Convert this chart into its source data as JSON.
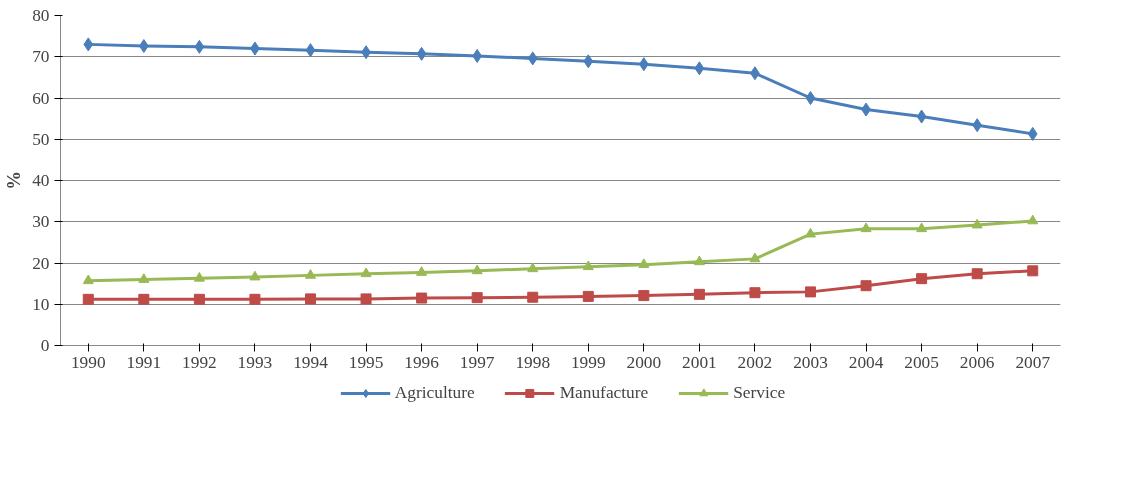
{
  "chart_data": {
    "type": "line",
    "ylabel": "%",
    "categories": [
      "1990",
      "1991",
      "1992",
      "1993",
      "1994",
      "1995",
      "1996",
      "1997",
      "1998",
      "1999",
      "2000",
      "2001",
      "2002",
      "2003",
      "2004",
      "2005",
      "2006",
      "2007"
    ],
    "series": [
      {
        "name": "Agriculture",
        "color": "#4a7ebb",
        "marker": "diamond",
        "values": [
          73.0,
          72.6,
          72.4,
          72.0,
          71.6,
          71.1,
          70.7,
          70.2,
          69.6,
          68.9,
          68.2,
          67.2,
          66.0,
          60.0,
          57.2,
          55.5,
          53.4,
          51.3
        ]
      },
      {
        "name": "Manufacture",
        "color": "#be4b48",
        "marker": "square",
        "values": [
          11.2,
          11.2,
          11.2,
          11.2,
          11.3,
          11.3,
          11.5,
          11.6,
          11.7,
          11.9,
          12.1,
          12.4,
          12.8,
          13.0,
          14.5,
          16.2,
          17.4,
          18.1
        ]
      },
      {
        "name": "Service",
        "color": "#98b954",
        "marker": "triangle",
        "values": [
          15.7,
          16.0,
          16.3,
          16.6,
          17.0,
          17.4,
          17.7,
          18.1,
          18.6,
          19.1,
          19.6,
          20.3,
          21.0,
          27.0,
          28.3,
          28.3,
          29.2,
          30.2
        ]
      }
    ],
    "ylim": [
      0,
      80
    ],
    "yticks": [
      0,
      10,
      20,
      30,
      40,
      50,
      60,
      70,
      80
    ],
    "grid": "y",
    "legend": "bottom",
    "line_style": "solid"
  }
}
